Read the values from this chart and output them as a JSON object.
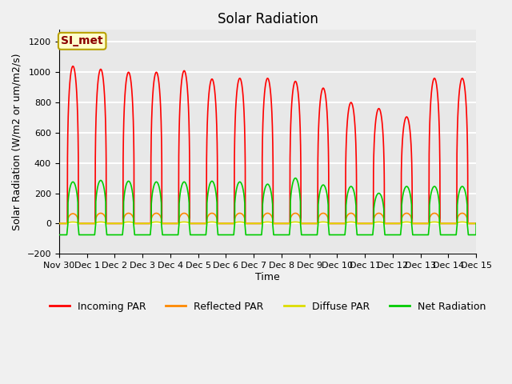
{
  "title": "Solar Radiation",
  "ylabel": "Solar Radiation (W/m2 or um/m2/s)",
  "xlabel": "Time",
  "ylim": [
    -200,
    1280
  ],
  "yticks": [
    -200,
    0,
    200,
    400,
    600,
    800,
    1000,
    1200
  ],
  "plot_bg_color": "#e8e8e8",
  "fig_bg_color": "#f0f0f0",
  "grid_color": "white",
  "annotation_text": "SI_met",
  "annotation_fg": "#8b0000",
  "annotation_bg": "#ffffcc",
  "annotation_border": "#b8a000",
  "series": {
    "incoming_par": {
      "color": "#ff0000",
      "label": "Incoming PAR",
      "lw": 1.2
    },
    "reflected_par": {
      "color": "#ff8800",
      "label": "Reflected PAR",
      "lw": 1.2
    },
    "diffuse_par": {
      "color": "#dddd00",
      "label": "Diffuse PAR",
      "lw": 1.2
    },
    "net_radiation": {
      "color": "#00cc00",
      "label": "Net Radiation",
      "lw": 1.2
    }
  },
  "x_tick_positions": [
    0,
    1,
    2,
    3,
    4,
    5,
    6,
    7,
    8,
    9,
    10,
    11,
    12,
    13,
    14,
    15
  ],
  "x_tick_labels": [
    "Nov 30",
    "Dec 1",
    "Dec 2",
    "Dec 3",
    "Dec 4",
    "Dec 5",
    "Dec 6",
    "Dec 7",
    "Dec 8",
    "Dec 9",
    "Dec 10",
    "Dec 11",
    "Dec 12",
    "Dec 13",
    "Dec 14",
    "Dec 15"
  ],
  "num_days": 15,
  "points_per_day": 288,
  "day_peaks_incoming": [
    1040,
    1020,
    1000,
    1000,
    1010,
    955,
    960,
    960,
    940,
    895,
    800,
    760,
    705,
    960,
    960
  ],
  "day_peaks_net": [
    275,
    285,
    280,
    275,
    275,
    280,
    275,
    260,
    300,
    255,
    245,
    200,
    245,
    245,
    245
  ],
  "day_peaks_reflected": [
    65,
    68,
    68,
    68,
    68,
    68,
    68,
    68,
    68,
    68,
    68,
    68,
    68,
    68,
    68
  ],
  "night_net": -75,
  "title_fontsize": 12,
  "label_fontsize": 9,
  "tick_fontsize": 8
}
